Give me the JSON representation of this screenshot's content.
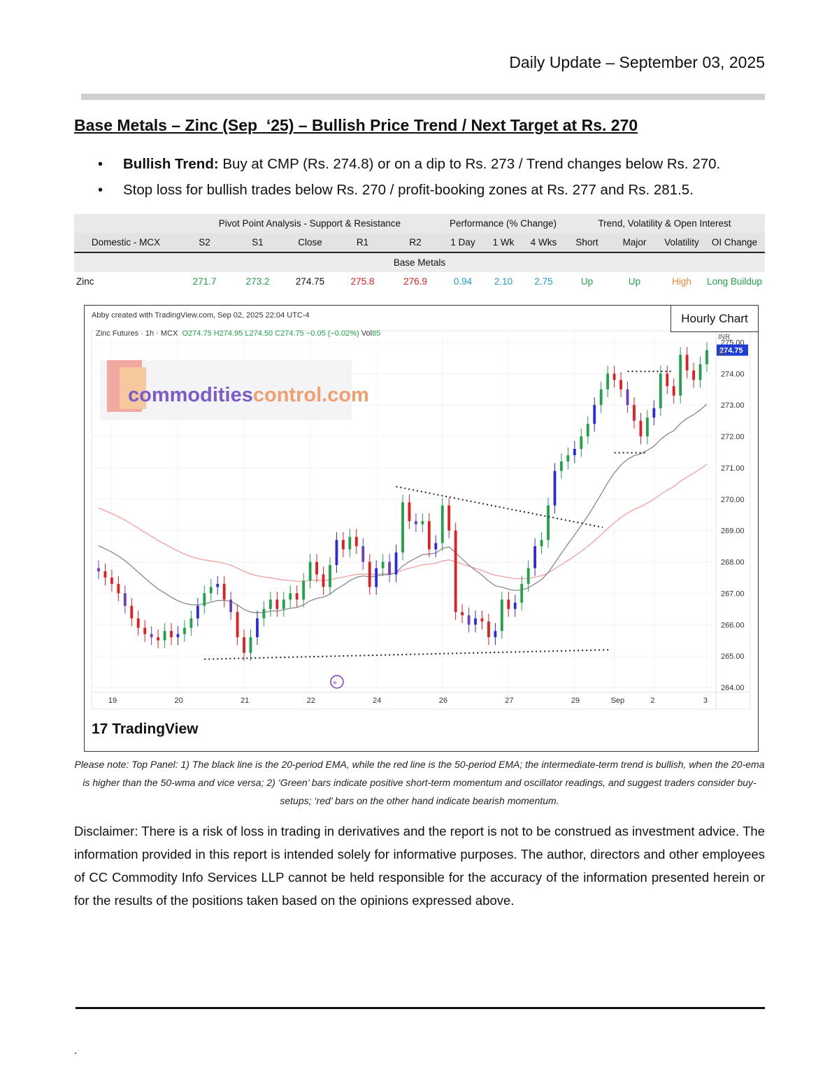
{
  "header": {
    "date_line": "Daily Update – September 03, 2025",
    "title": "Base Metals – Zinc (Sep  ‘25) – Bullish Price Trend / Next Target at Rs. 270"
  },
  "bullets": [
    {
      "bold": "Bullish Trend:",
      "text": " Buy at CMP (Rs. 274.8) or on a dip to Rs. 273 / Trend changes below Rs. 270."
    },
    {
      "bold": "",
      "text": "Stop loss for bullish trades below Rs. 270 / profit-booking zones at Rs. 277 and Rs. 281.5."
    }
  ],
  "table": {
    "groups": [
      "Pivot Point Analysis - Support & Resistance",
      "Performance (% Change)",
      "Trend, Volatility & Open Interest"
    ],
    "columns": [
      "Domestic - MCX",
      "S2",
      "S1",
      "Close",
      "R1",
      "R2",
      "1 Day",
      "1 Wk",
      "4 Wks",
      "Short",
      "Major",
      "Volatility",
      "OI Change"
    ],
    "section": "Base Metals",
    "row": [
      "Zinc",
      "271.7",
      "273.2",
      "274.75",
      "275.8",
      "276.9",
      "0.94",
      "2.10",
      "2.75",
      "Up",
      "Up",
      "High",
      "Long Buildup"
    ],
    "colors": {
      "green": "#22a04a",
      "red": "#d92020",
      "blue": "#1f9bd1",
      "orange": "#e8893a"
    }
  },
  "chart": {
    "label": "Hourly Chart",
    "created_by": "Abby created with TradingView.com, Sep 02, 2025 22:04 UTC-4",
    "symbol_line": "Zinc Futures · 1h · MCX",
    "ohlc": "O274.75 H274.95 L274.50 C274.75 −0.05 (−0.02%)",
    "vol_label": "Vol",
    "vol": "85",
    "unit_currency": "INR",
    "unit_qty": "kg",
    "last_price": "274.75",
    "watermark_a": "commodities",
    "watermark_b": "control.com",
    "brand": "TradingView",
    "brand_mark": "17"
  },
  "chart_data": {
    "type": "candlestick",
    "title": "",
    "ylim": [
      263.8,
      275.5
    ],
    "y_ticks": [
      "275.00",
      "274.00",
      "273.00",
      "272.00",
      "271.00",
      "270.00",
      "269.00",
      "268.00",
      "267.00",
      "266.00",
      "265.00",
      "264.00"
    ],
    "x_ticks": [
      "19",
      "20",
      "21",
      "22",
      "24",
      "26",
      "27",
      "29",
      "Sep",
      "2",
      "3"
    ],
    "series": [
      {
        "name": "20-period EMA",
        "color": "#888888"
      },
      {
        "name": "50-period EMA",
        "color": "#f0a0a0"
      }
    ],
    "closes": [
      267.7,
      267.5,
      267.3,
      267.0,
      266.6,
      266.2,
      265.9,
      265.7,
      265.6,
      265.5,
      265.8,
      265.6,
      265.7,
      265.9,
      266.2,
      266.6,
      267.0,
      267.2,
      267.3,
      266.8,
      266.4,
      265.6,
      265.1,
      265.6,
      266.2,
      266.5,
      266.8,
      266.5,
      266.8,
      267.0,
      266.8,
      267.4,
      268.0,
      267.6,
      267.2,
      267.9,
      268.7,
      268.4,
      268.8,
      268.5,
      268.0,
      267.2,
      267.8,
      268.0,
      267.6,
      268.3,
      269.9,
      269.3,
      269.2,
      269.3,
      268.4,
      268.6,
      269.8,
      269.0,
      266.4,
      266.3,
      266.0,
      266.2,
      266.1,
      265.6,
      265.8,
      266.8,
      266.5,
      266.7,
      267.3,
      267.8,
      268.5,
      268.7,
      269.8,
      270.9,
      271.2,
      271.4,
      271.6,
      272.0,
      272.4,
      273.0,
      273.5,
      274.0,
      273.8,
      273.5,
      273.0,
      272.5,
      272.0,
      272.6,
      272.9,
      274.0,
      273.6,
      273.3,
      274.6,
      274.1,
      273.8,
      274.3,
      274.75
    ],
    "ema20_end": 274.0,
    "ema50_end": 272.3,
    "resistance_line": [
      269.1,
      270.4
    ],
    "support_line": [
      264.9,
      265.2
    ],
    "notes": "Approximate hourly candle closes read from chart"
  },
  "note": "Please note: Top Panel: 1) The black line is the 20-period EMA, while the red line is the 50-period EMA; the intermediate-term trend is bullish, when the 20-ema is higher than the 50-wma and vice versa; 2)  ‘Green’  bars indicate positive short-term momentum and oscillator readings, and suggest traders consider buy-setups;  ‘red’  bars on the other hand indicate bearish momentum.",
  "disclaimer": "Disclaimer: There is a risk of loss in trading in derivatives and the report is not to be construed as investment advice. The information provided in this report is intended solely for informative purposes. The author, directors and other employees of CC Commodity Info Services LLP cannot be held responsible for the accuracy of the information presented herein or for the results of the positions taken based on the opinions expressed above.",
  "footer_dot": "."
}
